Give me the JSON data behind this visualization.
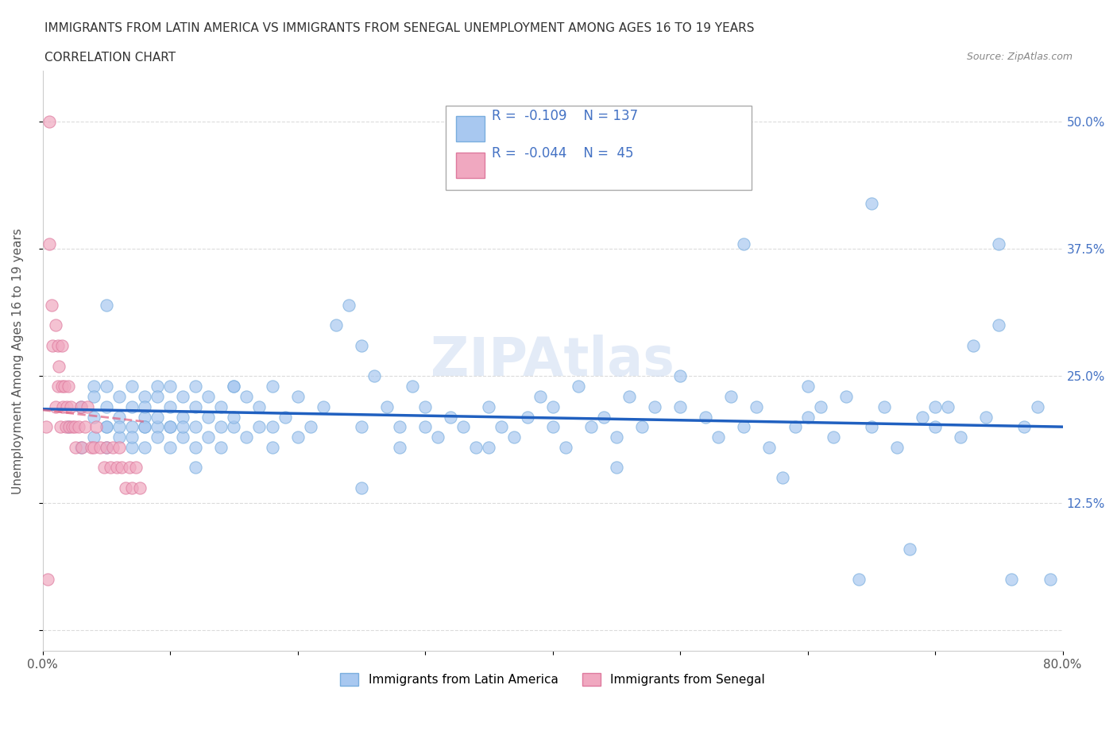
{
  "title_line1": "IMMIGRANTS FROM LATIN AMERICA VS IMMIGRANTS FROM SENEGAL UNEMPLOYMENT AMONG AGES 16 TO 19 YEARS",
  "title_line2": "CORRELATION CHART",
  "source": "Source: ZipAtlas.com",
  "xlabel": "",
  "ylabel": "Unemployment Among Ages 16 to 19 years",
  "xlim": [
    0.0,
    0.8
  ],
  "ylim": [
    -0.02,
    0.55
  ],
  "xticks": [
    0.0,
    0.1,
    0.2,
    0.3,
    0.4,
    0.5,
    0.6,
    0.7,
    0.8
  ],
  "xticklabels": [
    "0.0%",
    "",
    "",
    "",
    "",
    "",
    "",
    "",
    "80.0%"
  ],
  "yticks": [
    0.0,
    0.125,
    0.25,
    0.375,
    0.5
  ],
  "yticklabels": [
    "",
    "12.5%",
    "25.0%",
    "37.5%",
    "50.0%"
  ],
  "blue_color": "#a8c8f0",
  "blue_edge": "#7aaede",
  "pink_color": "#f0a8c0",
  "pink_edge": "#de7a9e",
  "blue_line_color": "#2060c0",
  "pink_line_color": "#e06080",
  "legend_R_blue": "-0.109",
  "legend_N_blue": "137",
  "legend_R_pink": "-0.044",
  "legend_N_pink": "45",
  "legend_label_blue": "Immigrants from Latin America",
  "legend_label_pink": "Immigrants from Senegal",
  "watermark": "ZIPAtlas",
  "blue_scatter_x": [
    0.02,
    0.03,
    0.03,
    0.04,
    0.04,
    0.04,
    0.04,
    0.05,
    0.05,
    0.05,
    0.05,
    0.05,
    0.06,
    0.06,
    0.06,
    0.06,
    0.07,
    0.07,
    0.07,
    0.07,
    0.07,
    0.08,
    0.08,
    0.08,
    0.08,
    0.08,
    0.09,
    0.09,
    0.09,
    0.09,
    0.09,
    0.1,
    0.1,
    0.1,
    0.1,
    0.1,
    0.11,
    0.11,
    0.11,
    0.11,
    0.12,
    0.12,
    0.12,
    0.12,
    0.13,
    0.13,
    0.13,
    0.14,
    0.14,
    0.14,
    0.15,
    0.15,
    0.15,
    0.16,
    0.16,
    0.17,
    0.17,
    0.18,
    0.18,
    0.18,
    0.19,
    0.2,
    0.2,
    0.21,
    0.22,
    0.23,
    0.24,
    0.25,
    0.25,
    0.26,
    0.27,
    0.28,
    0.28,
    0.29,
    0.3,
    0.3,
    0.31,
    0.32,
    0.33,
    0.34,
    0.35,
    0.36,
    0.37,
    0.38,
    0.39,
    0.4,
    0.4,
    0.41,
    0.42,
    0.43,
    0.44,
    0.45,
    0.46,
    0.47,
    0.48,
    0.5,
    0.52,
    0.53,
    0.54,
    0.55,
    0.56,
    0.57,
    0.58,
    0.59,
    0.6,
    0.61,
    0.62,
    0.63,
    0.64,
    0.65,
    0.66,
    0.67,
    0.68,
    0.69,
    0.7,
    0.71,
    0.72,
    0.73,
    0.74,
    0.75,
    0.76,
    0.77,
    0.78,
    0.79,
    0.75,
    0.65,
    0.55,
    0.45,
    0.35,
    0.25,
    0.15,
    0.05,
    0.08,
    0.12,
    0.5,
    0.6,
    0.7
  ],
  "blue_scatter_y": [
    0.2,
    0.22,
    0.18,
    0.24,
    0.19,
    0.21,
    0.23,
    0.2,
    0.22,
    0.18,
    0.24,
    0.2,
    0.21,
    0.19,
    0.23,
    0.2,
    0.22,
    0.18,
    0.24,
    0.2,
    0.19,
    0.21,
    0.23,
    0.2,
    0.22,
    0.18,
    0.24,
    0.2,
    0.21,
    0.19,
    0.23,
    0.2,
    0.22,
    0.18,
    0.24,
    0.2,
    0.21,
    0.19,
    0.23,
    0.2,
    0.22,
    0.18,
    0.24,
    0.2,
    0.21,
    0.19,
    0.23,
    0.2,
    0.22,
    0.18,
    0.24,
    0.2,
    0.21,
    0.19,
    0.23,
    0.2,
    0.22,
    0.18,
    0.24,
    0.2,
    0.21,
    0.19,
    0.23,
    0.2,
    0.22,
    0.3,
    0.32,
    0.2,
    0.28,
    0.25,
    0.22,
    0.2,
    0.18,
    0.24,
    0.2,
    0.22,
    0.19,
    0.21,
    0.2,
    0.18,
    0.22,
    0.2,
    0.19,
    0.21,
    0.23,
    0.2,
    0.22,
    0.18,
    0.24,
    0.2,
    0.21,
    0.19,
    0.23,
    0.2,
    0.22,
    0.25,
    0.21,
    0.19,
    0.23,
    0.2,
    0.22,
    0.18,
    0.15,
    0.2,
    0.21,
    0.22,
    0.19,
    0.23,
    0.05,
    0.2,
    0.22,
    0.18,
    0.08,
    0.21,
    0.2,
    0.22,
    0.19,
    0.28,
    0.21,
    0.3,
    0.05,
    0.2,
    0.22,
    0.05,
    0.38,
    0.42,
    0.38,
    0.16,
    0.18,
    0.14,
    0.24,
    0.32,
    0.2,
    0.16,
    0.22,
    0.24,
    0.22
  ],
  "pink_scatter_x": [
    0.005,
    0.005,
    0.007,
    0.008,
    0.01,
    0.01,
    0.012,
    0.012,
    0.013,
    0.014,
    0.015,
    0.015,
    0.016,
    0.017,
    0.018,
    0.019,
    0.02,
    0.021,
    0.022,
    0.023,
    0.025,
    0.026,
    0.028,
    0.03,
    0.031,
    0.033,
    0.035,
    0.038,
    0.04,
    0.042,
    0.045,
    0.048,
    0.05,
    0.053,
    0.055,
    0.058,
    0.06,
    0.062,
    0.065,
    0.068,
    0.07,
    0.073,
    0.076,
    0.004,
    0.003
  ],
  "pink_scatter_y": [
    0.5,
    0.38,
    0.32,
    0.28,
    0.3,
    0.22,
    0.28,
    0.24,
    0.26,
    0.2,
    0.28,
    0.24,
    0.22,
    0.24,
    0.2,
    0.22,
    0.24,
    0.2,
    0.22,
    0.2,
    0.2,
    0.18,
    0.2,
    0.22,
    0.18,
    0.2,
    0.22,
    0.18,
    0.18,
    0.2,
    0.18,
    0.16,
    0.18,
    0.16,
    0.18,
    0.16,
    0.18,
    0.16,
    0.14,
    0.16,
    0.14,
    0.16,
    0.14,
    0.05,
    0.2
  ]
}
